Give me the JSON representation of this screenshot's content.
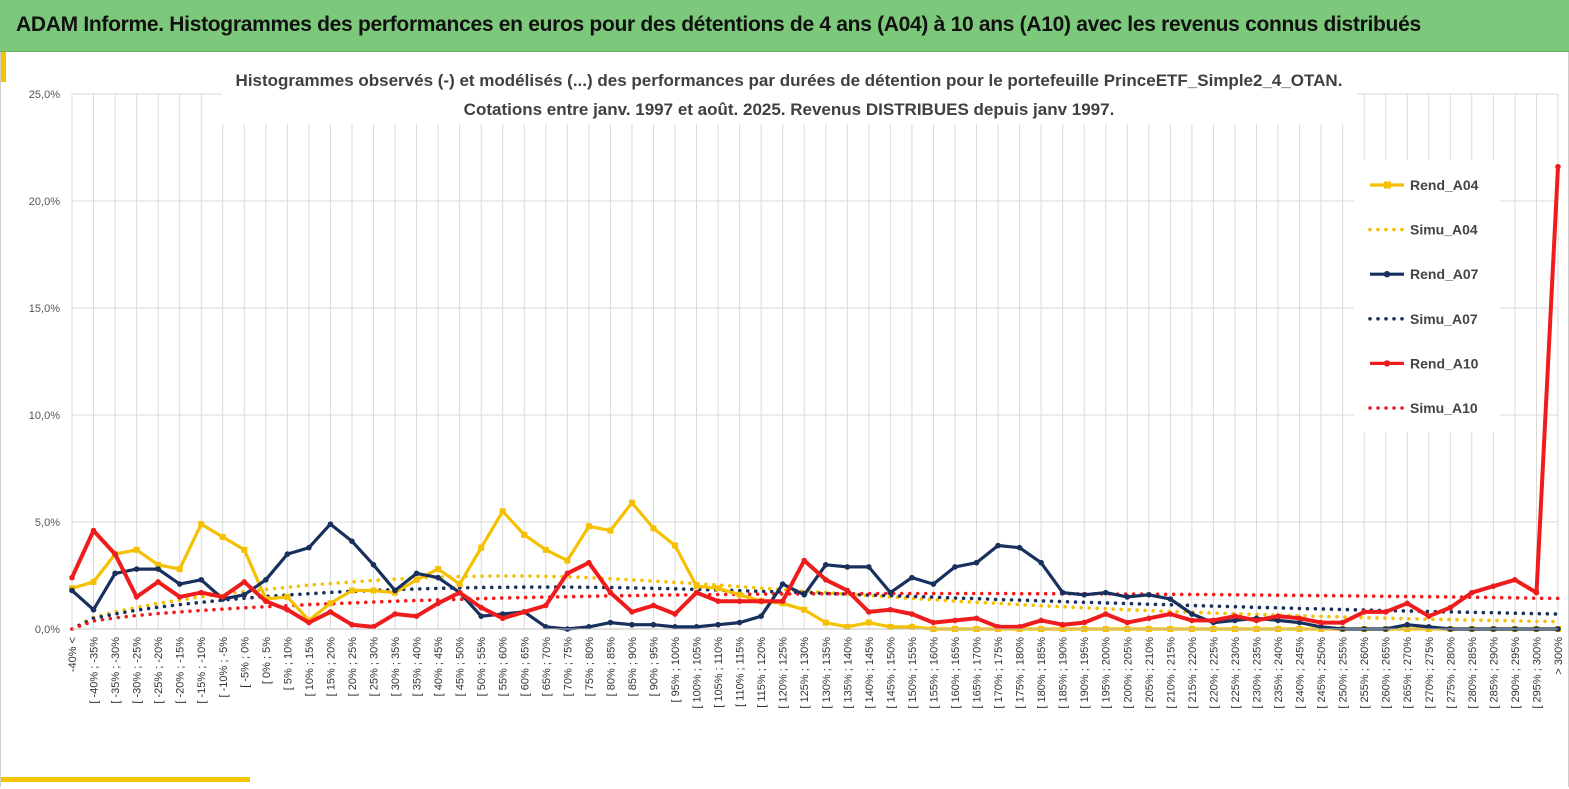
{
  "banner": {
    "title": "ADAM Informe. Histogrammes des performances en euros pour des détentions de 4 ans (A04) à 10 ans (A10) avec les revenus connus distribués"
  },
  "colors": {
    "banner_bg": "#7dc97b",
    "accent": "#f5c400",
    "a04": "#f5c000",
    "a07": "#17305e",
    "a10": "#ee1c1c",
    "grid": "#d9d9d9"
  },
  "chart_data": {
    "type": "line",
    "title": "Histogrammes observés (-) et modélisés (...) des performances par durées de détention pour le portefeuille PrinceETF_Simple2_4_OTAN.",
    "subtitle": "Cotations entre janv. 1997 et août. 2025. Revenus DISTRIBUES depuis janv 1997.",
    "xlabel": "",
    "ylabel": "",
    "ylim": [
      0,
      25
    ],
    "y_ticks": [
      "0,0%",
      "5,0%",
      "10,0%",
      "15,0%",
      "20,0%",
      "25,0%"
    ],
    "grid": true,
    "legend_position": "right",
    "categories": [
      "-40% <",
      "[ -40% ; -35%",
      "[ -35% ; -30%",
      "[ -30% ; -25%",
      "[ -25% ; -20%",
      "[ -20% ; -15%",
      "[ -15% ; -10%",
      "[ -10% ; -5%",
      "[ -5% ; 0%",
      "[ 0% ; 5%",
      "[ 5% ; 10%",
      "[ 10% ; 15%",
      "[ 15% ; 20%",
      "[ 20% ; 25%",
      "[ 25% ; 30%",
      "[ 30% ; 35%",
      "[ 35% ; 40%",
      "[ 40% ; 45%",
      "[ 45% ; 50%",
      "[ 50% ; 55%",
      "[ 55% ; 60%",
      "[ 60% ; 65%",
      "[ 65% ; 70%",
      "[ 70% ; 75%",
      "[ 75% ; 80%",
      "[ 80% ; 85%",
      "[ 85% ; 90%",
      "[ 90% ; 95%",
      "[ 95% ; 100%",
      "[ 100% ; 105%",
      "[ 105% ; 110%",
      "[ 110% ; 115%",
      "[ 115% ; 120%",
      "[ 120% ; 125%",
      "[ 125% ; 130%",
      "[ 130% ; 135%",
      "[ 135% ; 140%",
      "[ 140% ; 145%",
      "[ 145% ; 150%",
      "[ 150% ; 155%",
      "[ 155% ; 160%",
      "[ 160% ; 165%",
      "[ 165% ; 170%",
      "[ 170% ; 175%",
      "[ 175% ; 180%",
      "[ 180% ; 185%",
      "[ 185% ; 190%",
      "[ 190% ; 195%",
      "[ 195% ; 200%",
      "[ 200% ; 205%",
      "[ 205% ; 210%",
      "[ 210% ; 215%",
      "[ 215% ; 220%",
      "[ 220% ; 225%",
      "[ 225% ; 230%",
      "[ 230% ; 235%",
      "[ 235% ; 240%",
      "[ 240% ; 245%",
      "[ 245% ; 250%",
      "[ 250% ; 255%",
      "[ 255% ; 260%",
      "[ 260% ; 265%",
      "[ 265% ; 270%",
      "[ 270% ; 275%",
      "[ 275% ; 280%",
      "[ 280% ; 285%",
      "[ 285% ; 290%",
      "[ 290% ; 295%",
      "[ 295% ; 300%",
      "> 300%"
    ],
    "series": [
      {
        "name": "Rend_A04",
        "style": "solid",
        "marker": "square",
        "color": "#f5c000",
        "values": [
          1.9,
          2.2,
          3.5,
          3.7,
          3.0,
          2.8,
          4.9,
          4.3,
          3.7,
          1.4,
          1.5,
          0.4,
          1.2,
          1.8,
          1.8,
          1.7,
          2.3,
          2.8,
          2.1,
          3.8,
          5.5,
          4.4,
          3.7,
          3.2,
          4.8,
          4.6,
          5.9,
          4.7,
          3.9,
          2.0,
          1.9,
          1.6,
          1.3,
          1.2,
          0.9,
          0.3,
          0.1,
          0.3,
          0.1,
          0.1,
          0.0,
          0.0,
          0.0,
          0.0,
          0.0,
          0.0,
          0.0,
          0.0,
          0.0,
          0.0,
          0.0,
          0.0,
          0.0,
          0.0,
          0.0,
          0.0,
          0.0,
          0.0,
          0.0,
          0.0,
          0.0,
          0.0,
          0.0,
          0.0,
          0.0,
          0.0,
          0.0,
          0.0,
          0.0,
          0.0
        ]
      },
      {
        "name": "Simu_A04",
        "style": "dotted",
        "color": "#f5c000",
        "values": [
          0.0,
          0.55,
          0.8,
          1.0,
          1.2,
          1.35,
          1.5,
          1.65,
          1.75,
          1.85,
          1.95,
          2.05,
          2.12,
          2.2,
          2.27,
          2.33,
          2.38,
          2.42,
          2.45,
          2.47,
          2.48,
          2.48,
          2.46,
          2.44,
          2.4,
          2.35,
          2.3,
          2.24,
          2.18,
          2.12,
          2.05,
          1.98,
          1.91,
          1.84,
          1.77,
          1.7,
          1.63,
          1.56,
          1.5,
          1.43,
          1.37,
          1.31,
          1.25,
          1.2,
          1.14,
          1.09,
          1.04,
          0.99,
          0.95,
          0.9,
          0.86,
          0.82,
          0.78,
          0.75,
          0.71,
          0.68,
          0.65,
          0.62,
          0.59,
          0.56,
          0.53,
          0.51,
          0.48,
          0.46,
          0.44,
          0.42,
          0.4,
          0.38,
          0.36,
          0.35
        ]
      },
      {
        "name": "Rend_A07",
        "style": "solid",
        "marker": "circle",
        "color": "#17305e",
        "values": [
          1.8,
          0.9,
          2.6,
          2.8,
          2.8,
          2.1,
          2.3,
          1.4,
          1.6,
          2.3,
          3.5,
          3.8,
          4.9,
          4.1,
          3.0,
          1.8,
          2.6,
          2.4,
          1.7,
          0.6,
          0.7,
          0.8,
          0.1,
          0.0,
          0.1,
          0.3,
          0.2,
          0.2,
          0.1,
          0.1,
          0.2,
          0.3,
          0.6,
          2.1,
          1.6,
          3.0,
          2.9,
          2.9,
          1.7,
          2.4,
          2.1,
          2.9,
          3.1,
          3.9,
          3.8,
          3.1,
          1.7,
          1.6,
          1.7,
          1.5,
          1.6,
          1.4,
          0.7,
          0.3,
          0.4,
          0.5,
          0.4,
          0.3,
          0.1,
          0.0,
          0.0,
          0.0,
          0.2,
          0.1,
          0.0,
          0.0,
          0.0,
          0.0,
          0.0,
          0.0
        ]
      },
      {
        "name": "Simu_A07",
        "style": "dotted",
        "color": "#17305e",
        "values": [
          0.0,
          0.5,
          0.7,
          0.88,
          1.02,
          1.14,
          1.25,
          1.35,
          1.44,
          1.52,
          1.59,
          1.65,
          1.71,
          1.76,
          1.8,
          1.84,
          1.87,
          1.9,
          1.92,
          1.94,
          1.95,
          1.96,
          1.96,
          1.96,
          1.95,
          1.94,
          1.92,
          1.9,
          1.88,
          1.85,
          1.82,
          1.79,
          1.76,
          1.73,
          1.7,
          1.66,
          1.63,
          1.59,
          1.56,
          1.52,
          1.49,
          1.45,
          1.42,
          1.38,
          1.35,
          1.32,
          1.28,
          1.25,
          1.22,
          1.19,
          1.16,
          1.13,
          1.1,
          1.07,
          1.04,
          1.01,
          0.99,
          0.96,
          0.94,
          0.91,
          0.89,
          0.86,
          0.84,
          0.82,
          0.8,
          0.78,
          0.76,
          0.74,
          0.72,
          0.7
        ]
      },
      {
        "name": "Rend_A10",
        "style": "solid",
        "marker": "circle",
        "color": "#ee1c1c",
        "values": [
          2.4,
          4.6,
          3.5,
          1.5,
          2.2,
          1.5,
          1.7,
          1.5,
          2.2,
          1.3,
          0.9,
          0.3,
          0.8,
          0.2,
          0.1,
          0.7,
          0.6,
          1.2,
          1.7,
          1.0,
          0.5,
          0.8,
          1.1,
          2.6,
          3.1,
          1.7,
          0.8,
          1.1,
          0.7,
          1.7,
          1.3,
          1.3,
          1.3,
          1.3,
          3.2,
          2.3,
          1.8,
          0.8,
          0.9,
          0.7,
          0.3,
          0.4,
          0.5,
          0.1,
          0.1,
          0.4,
          0.2,
          0.3,
          0.7,
          0.3,
          0.5,
          0.7,
          0.4,
          0.4,
          0.6,
          0.4,
          0.6,
          0.5,
          0.3,
          0.3,
          0.8,
          0.8,
          1.2,
          0.6,
          1.0,
          1.7,
          2.0,
          2.3,
          1.7,
          21.6
        ]
      },
      {
        "name": "Simu_A10",
        "style": "dotted",
        "color": "#ee1c1c",
        "values": [
          0.0,
          0.38,
          0.52,
          0.63,
          0.72,
          0.8,
          0.87,
          0.93,
          0.99,
          1.04,
          1.09,
          1.14,
          1.18,
          1.22,
          1.26,
          1.3,
          1.33,
          1.36,
          1.39,
          1.42,
          1.45,
          1.47,
          1.49,
          1.51,
          1.53,
          1.55,
          1.56,
          1.58,
          1.59,
          1.6,
          1.61,
          1.62,
          1.63,
          1.64,
          1.64,
          1.65,
          1.65,
          1.66,
          1.66,
          1.66,
          1.66,
          1.66,
          1.66,
          1.66,
          1.65,
          1.65,
          1.65,
          1.64,
          1.64,
          1.63,
          1.63,
          1.62,
          1.61,
          1.61,
          1.6,
          1.59,
          1.58,
          1.57,
          1.56,
          1.55,
          1.54,
          1.53,
          1.52,
          1.51,
          1.5,
          1.48,
          1.47,
          1.46,
          1.44,
          1.43
        ]
      }
    ]
  }
}
